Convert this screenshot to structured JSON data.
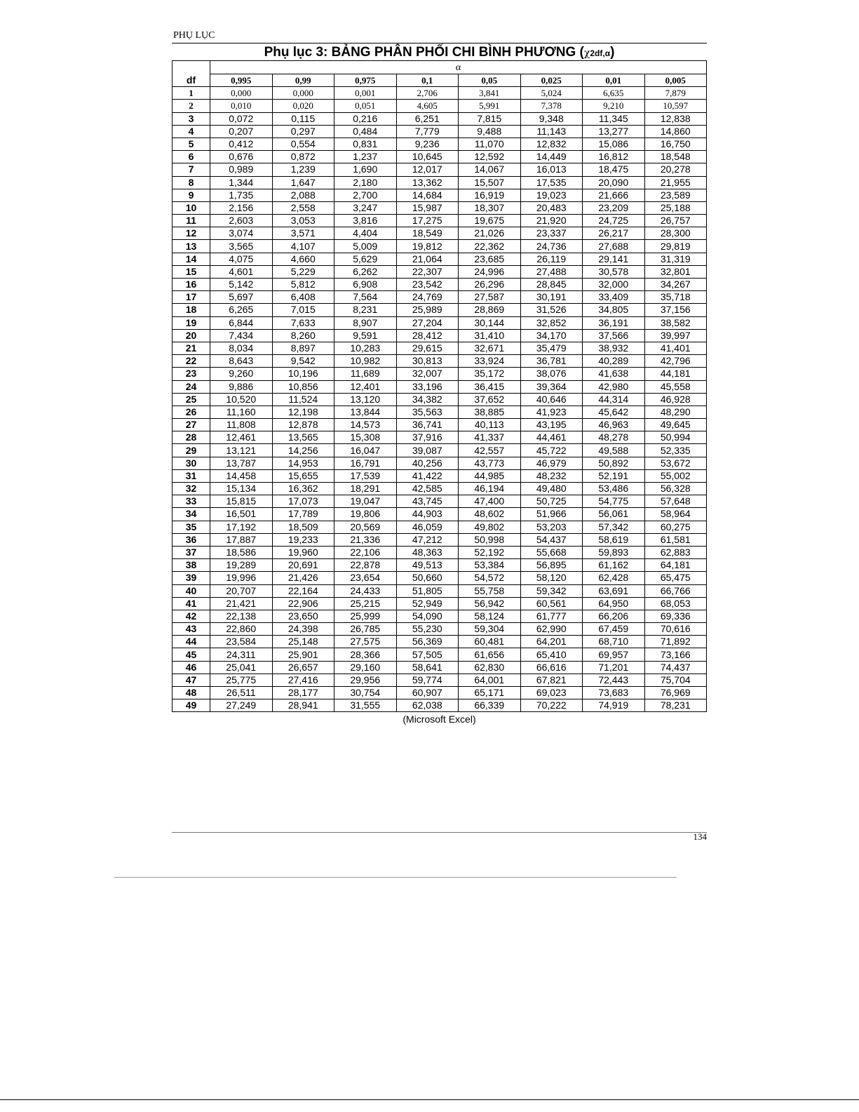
{
  "header": {
    "running_head": "PHỤ LỤC",
    "page_number": "134"
  },
  "title": {
    "main": "Phụ lục 3: BẢNG PHÂN PHỐI CHI BÌNH PHƯƠNG (",
    "symbol": "χ",
    "subscript": "2df,α",
    "close": ")"
  },
  "table": {
    "df_label": "df",
    "alpha_label": "α",
    "columns": [
      "0,995",
      "0,99",
      "0,975",
      "0,1",
      "0,05",
      "0,025",
      "0,01",
      "0,005"
    ],
    "rows": [
      [
        "1",
        "0,000",
        "0,000",
        "0,001",
        "2,706",
        "3,841",
        "5,024",
        "6,635",
        "7,879"
      ],
      [
        "2",
        "0,010",
        "0,020",
        "0,051",
        "4,605",
        "5,991",
        "7,378",
        "9,210",
        "10,597"
      ],
      [
        "3",
        "0,072",
        "0,115",
        "0,216",
        "6,251",
        "7,815",
        "9,348",
        "11,345",
        "12,838"
      ],
      [
        "4",
        "0,207",
        "0,297",
        "0,484",
        "7,779",
        "9,488",
        "11,143",
        "13,277",
        "14,860"
      ],
      [
        "5",
        "0,412",
        "0,554",
        "0,831",
        "9,236",
        "11,070",
        "12,832",
        "15,086",
        "16,750"
      ],
      [
        "6",
        "0,676",
        "0,872",
        "1,237",
        "10,645",
        "12,592",
        "14,449",
        "16,812",
        "18,548"
      ],
      [
        "7",
        "0,989",
        "1,239",
        "1,690",
        "12,017",
        "14,067",
        "16,013",
        "18,475",
        "20,278"
      ],
      [
        "8",
        "1,344",
        "1,647",
        "2,180",
        "13,362",
        "15,507",
        "17,535",
        "20,090",
        "21,955"
      ],
      [
        "9",
        "1,735",
        "2,088",
        "2,700",
        "14,684",
        "16,919",
        "19,023",
        "21,666",
        "23,589"
      ],
      [
        "10",
        "2,156",
        "2,558",
        "3,247",
        "15,987",
        "18,307",
        "20,483",
        "23,209",
        "25,188"
      ],
      [
        "11",
        "2,603",
        "3,053",
        "3,816",
        "17,275",
        "19,675",
        "21,920",
        "24,725",
        "26,757"
      ],
      [
        "12",
        "3,074",
        "3,571",
        "4,404",
        "18,549",
        "21,026",
        "23,337",
        "26,217",
        "28,300"
      ],
      [
        "13",
        "3,565",
        "4,107",
        "5,009",
        "19,812",
        "22,362",
        "24,736",
        "27,688",
        "29,819"
      ],
      [
        "14",
        "4,075",
        "4,660",
        "5,629",
        "21,064",
        "23,685",
        "26,119",
        "29,141",
        "31,319"
      ],
      [
        "15",
        "4,601",
        "5,229",
        "6,262",
        "22,307",
        "24,996",
        "27,488",
        "30,578",
        "32,801"
      ],
      [
        "16",
        "5,142",
        "5,812",
        "6,908",
        "23,542",
        "26,296",
        "28,845",
        "32,000",
        "34,267"
      ],
      [
        "17",
        "5,697",
        "6,408",
        "7,564",
        "24,769",
        "27,587",
        "30,191",
        "33,409",
        "35,718"
      ],
      [
        "18",
        "6,265",
        "7,015",
        "8,231",
        "25,989",
        "28,869",
        "31,526",
        "34,805",
        "37,156"
      ],
      [
        "19",
        "6,844",
        "7,633",
        "8,907",
        "27,204",
        "30,144",
        "32,852",
        "36,191",
        "38,582"
      ],
      [
        "20",
        "7,434",
        "8,260",
        "9,591",
        "28,412",
        "31,410",
        "34,170",
        "37,566",
        "39,997"
      ],
      [
        "21",
        "8,034",
        "8,897",
        "10,283",
        "29,615",
        "32,671",
        "35,479",
        "38,932",
        "41,401"
      ],
      [
        "22",
        "8,643",
        "9,542",
        "10,982",
        "30,813",
        "33,924",
        "36,781",
        "40,289",
        "42,796"
      ],
      [
        "23",
        "9,260",
        "10,196",
        "11,689",
        "32,007",
        "35,172",
        "38,076",
        "41,638",
        "44,181"
      ],
      [
        "24",
        "9,886",
        "10,856",
        "12,401",
        "33,196",
        "36,415",
        "39,364",
        "42,980",
        "45,558"
      ],
      [
        "25",
        "10,520",
        "11,524",
        "13,120",
        "34,382",
        "37,652",
        "40,646",
        "44,314",
        "46,928"
      ],
      [
        "26",
        "11,160",
        "12,198",
        "13,844",
        "35,563",
        "38,885",
        "41,923",
        "45,642",
        "48,290"
      ],
      [
        "27",
        "11,808",
        "12,878",
        "14,573",
        "36,741",
        "40,113",
        "43,195",
        "46,963",
        "49,645"
      ],
      [
        "28",
        "12,461",
        "13,565",
        "15,308",
        "37,916",
        "41,337",
        "44,461",
        "48,278",
        "50,994"
      ],
      [
        "29",
        "13,121",
        "14,256",
        "16,047",
        "39,087",
        "42,557",
        "45,722",
        "49,588",
        "52,335"
      ],
      [
        "30",
        "13,787",
        "14,953",
        "16,791",
        "40,256",
        "43,773",
        "46,979",
        "50,892",
        "53,672"
      ],
      [
        "31",
        "14,458",
        "15,655",
        "17,539",
        "41,422",
        "44,985",
        "48,232",
        "52,191",
        "55,002"
      ],
      [
        "32",
        "15,134",
        "16,362",
        "18,291",
        "42,585",
        "46,194",
        "49,480",
        "53,486",
        "56,328"
      ],
      [
        "33",
        "15,815",
        "17,073",
        "19,047",
        "43,745",
        "47,400",
        "50,725",
        "54,775",
        "57,648"
      ],
      [
        "34",
        "16,501",
        "17,789",
        "19,806",
        "44,903",
        "48,602",
        "51,966",
        "56,061",
        "58,964"
      ],
      [
        "35",
        "17,192",
        "18,509",
        "20,569",
        "46,059",
        "49,802",
        "53,203",
        "57,342",
        "60,275"
      ],
      [
        "36",
        "17,887",
        "19,233",
        "21,336",
        "47,212",
        "50,998",
        "54,437",
        "58,619",
        "61,581"
      ],
      [
        "37",
        "18,586",
        "19,960",
        "22,106",
        "48,363",
        "52,192",
        "55,668",
        "59,893",
        "62,883"
      ],
      [
        "38",
        "19,289",
        "20,691",
        "22,878",
        "49,513",
        "53,384",
        "56,895",
        "61,162",
        "64,181"
      ],
      [
        "39",
        "19,996",
        "21,426",
        "23,654",
        "50,660",
        "54,572",
        "58,120",
        "62,428",
        "65,475"
      ],
      [
        "40",
        "20,707",
        "22,164",
        "24,433",
        "51,805",
        "55,758",
        "59,342",
        "63,691",
        "66,766"
      ],
      [
        "41",
        "21,421",
        "22,906",
        "25,215",
        "52,949",
        "56,942",
        "60,561",
        "64,950",
        "68,053"
      ],
      [
        "42",
        "22,138",
        "23,650",
        "25,999",
        "54,090",
        "58,124",
        "61,777",
        "66,206",
        "69,336"
      ],
      [
        "43",
        "22,860",
        "24,398",
        "26,785",
        "55,230",
        "59,304",
        "62,990",
        "67,459",
        "70,616"
      ],
      [
        "44",
        "23,584",
        "25,148",
        "27,575",
        "56,369",
        "60,481",
        "64,201",
        "68,710",
        "71,892"
      ],
      [
        "45",
        "24,311",
        "25,901",
        "28,366",
        "57,505",
        "61,656",
        "65,410",
        "69,957",
        "73,166"
      ],
      [
        "46",
        "25,041",
        "26,657",
        "29,160",
        "58,641",
        "62,830",
        "66,616",
        "71,201",
        "74,437"
      ],
      [
        "47",
        "25,775",
        "27,416",
        "29,956",
        "59,774",
        "64,001",
        "67,821",
        "72,443",
        "75,704"
      ],
      [
        "48",
        "26,511",
        "28,177",
        "30,754",
        "60,907",
        "65,171",
        "69,023",
        "73,683",
        "76,969"
      ],
      [
        "49",
        "27,249",
        "28,941",
        "31,555",
        "62,038",
        "66,339",
        "70,222",
        "74,919",
        "78,231"
      ]
    ]
  },
  "source": "(Microsoft Excel)"
}
